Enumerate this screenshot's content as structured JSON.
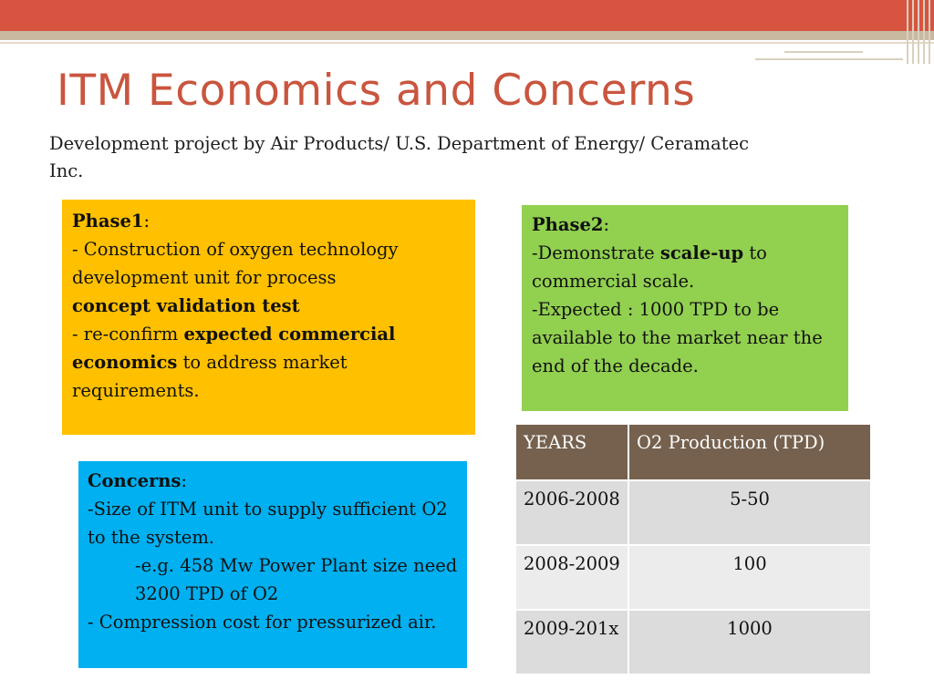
{
  "slide": {
    "title": "ITM Economics and Concerns",
    "subtitle": "Development project by Air Products/ U.S. Department of Energy/ Ceramatec Inc."
  },
  "phase1": {
    "heading": "Phase1",
    "colon": ":",
    "line1": "- Construction of oxygen  technology development unit for process",
    "line2_bold": "concept validation test",
    "line3_pre": "- re-confirm ",
    "line3_bold": "expected commercial economics",
    "line3_post": " to address market requirements.",
    "color": "#ffc000"
  },
  "phase2": {
    "heading": "Phase2",
    "colon": ":",
    "line1_pre": "-Demonstrate ",
    "line1_bold": "scale-up",
    "line1_post": " to commercial scale.",
    "line2": "-Expected : 1000 TPD to be available to the market near the end of the decade.",
    "color": "#92d050"
  },
  "concerns": {
    "heading": "Concerns",
    "colon": ":",
    "line1": "-Size of ITM unit to supply sufficient O2 to the system.",
    "line2": "-e.g. 458 Mw Power Plant size need 3200 TPD of O2",
    "line3": "- Compression cost for pressurized air.",
    "color": "#00b0f0"
  },
  "table": {
    "headers": [
      "YEARS",
      "O2 Production (TPD)"
    ],
    "rows": [
      {
        "years": "2006-2008",
        "value": "5-50"
      },
      {
        "years": "2008-2009",
        "value": "100"
      },
      {
        "years": "2009-201x",
        "value": "1000"
      }
    ],
    "header_color": "#75614e"
  },
  "theme": {
    "accent": "#d75540",
    "title_color": "#c9553e"
  }
}
